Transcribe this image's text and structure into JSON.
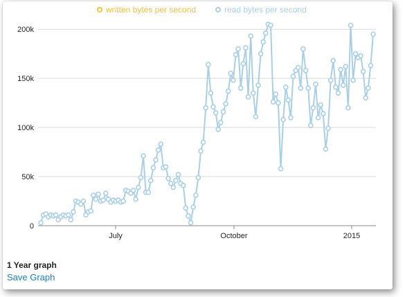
{
  "chart_data": {
    "type": "line",
    "title": "1 Year graph",
    "xlabel": "",
    "ylabel": "",
    "x_ticks": [
      "July",
      "October",
      "2015"
    ],
    "y_ticks": [
      "0",
      "50k",
      "100k",
      "150k",
      "200k"
    ],
    "ylim": [
      0,
      210000
    ],
    "grid": true,
    "legend_position": "top-center",
    "series": [
      {
        "name": "written bytes per second",
        "color": "#f0c040",
        "values": []
      },
      {
        "name": "read bytes per second",
        "color": "#a9cfe6",
        "values": [
          3000,
          11000,
          12000,
          9000,
          11000,
          10000,
          11000,
          6000,
          9000,
          11000,
          10000,
          11000,
          6000,
          14000,
          25000,
          24000,
          22000,
          25000,
          11000,
          14000,
          15000,
          31000,
          27000,
          32000,
          25000,
          26000,
          33000,
          27000,
          24000,
          26000,
          25000,
          26000,
          24000,
          25000,
          36000,
          35000,
          33000,
          36000,
          27000,
          39000,
          49000,
          71000,
          34000,
          34000,
          46000,
          59000,
          67000,
          77000,
          83000,
          59000,
          60000,
          48000,
          43000,
          39000,
          46000,
          52000,
          43000,
          41000,
          18000,
          10000,
          3000,
          19000,
          31000,
          49000,
          76000,
          85000,
          120000,
          164000,
          135000,
          121000,
          115000,
          98000,
          105000,
          116000,
          124000,
          137000,
          155000,
          148000,
          174000,
          180000,
          140000,
          165000,
          181000,
          131000,
          193000,
          135000,
          111000,
          143000,
          175000,
          187000,
          196000,
          205000,
          204000,
          126000,
          134000,
          125000,
          58000,
          108000,
          141000,
          128000,
          110000,
          152000,
          158000,
          161000,
          140000,
          180000,
          158000,
          140000,
          102000,
          120000,
          144000,
          110000,
          123000,
          114000,
          78000,
          99000,
          148000,
          168000,
          141000,
          135000,
          159000,
          143000,
          162000,
          120000,
          204000,
          148000,
          175000,
          171000,
          173000,
          157000,
          130000,
          140000,
          163000,
          195000
        ]
      }
    ]
  },
  "footer": {
    "graph_title": "1 Year graph",
    "save_link": "Save Graph"
  }
}
